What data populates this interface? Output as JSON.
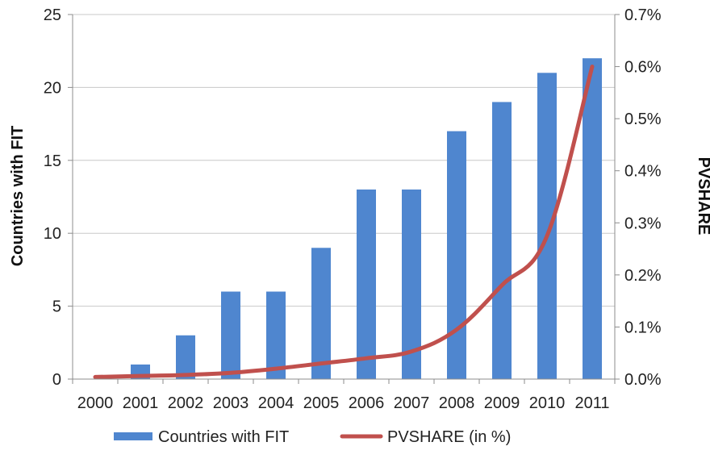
{
  "chart_data": {
    "type": "bar",
    "categories": [
      "2000",
      "2001",
      "2002",
      "2003",
      "2004",
      "2005",
      "2006",
      "2007",
      "2008",
      "2009",
      "2010",
      "2011"
    ],
    "series": [
      {
        "name": "Countries with FIT",
        "type": "bar",
        "axis": "left",
        "color": "#4f86cf",
        "values": [
          0,
          1,
          3,
          6,
          6,
          9,
          13,
          13,
          17,
          19,
          21,
          22
        ]
      },
      {
        "name": "PVSHARE (in %)",
        "type": "line",
        "axis": "right",
        "color": "#c0504d",
        "values": [
          0.004,
          0.006,
          0.008,
          0.012,
          0.02,
          0.03,
          0.04,
          0.053,
          0.095,
          0.18,
          0.275,
          0.6
        ]
      }
    ],
    "ylabel": "Countries with FIT",
    "ylim": [
      0,
      25
    ],
    "yticks": [
      "0",
      "5",
      "10",
      "15",
      "20",
      "25"
    ],
    "y2label": "PVSHARE",
    "y2lim": [
      0,
      0.7
    ],
    "y2ticks": [
      "0.0%",
      "0.1%",
      "0.2%",
      "0.3%",
      "0.4%",
      "0.5%",
      "0.6%",
      "0.7%"
    ],
    "grid": true,
    "legend_position": "bottom"
  }
}
